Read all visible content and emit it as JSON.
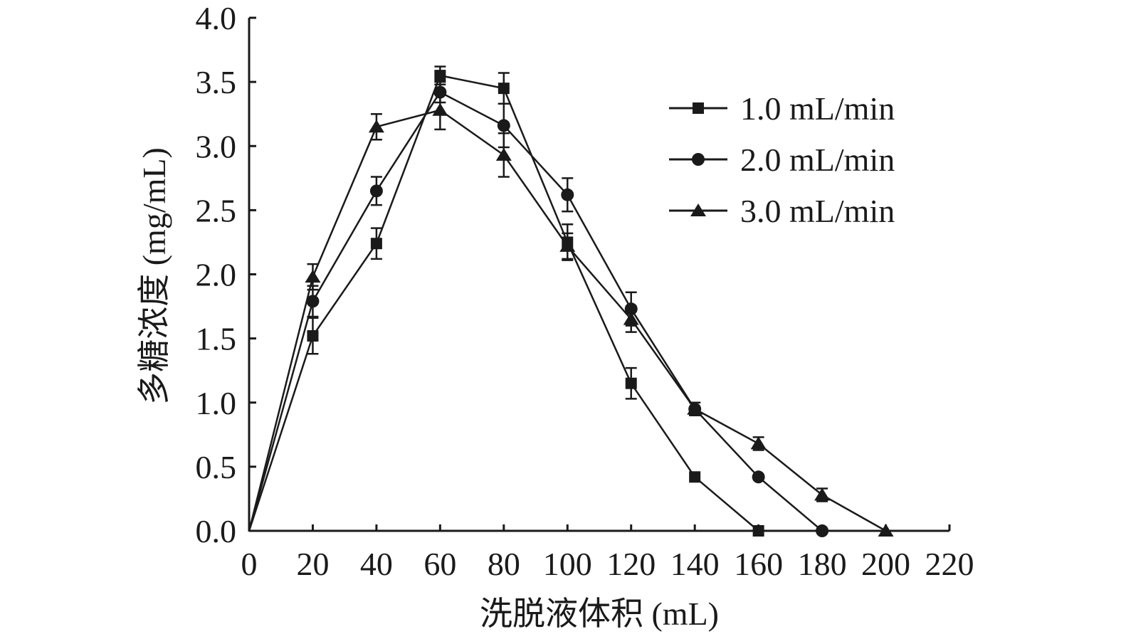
{
  "chart_data": {
    "type": "line",
    "title": "",
    "xlabel": "洗脱液体积 (mL)",
    "ylabel": "多糖浓度 (mg/mL)",
    "xlim": [
      0,
      220
    ],
    "ylim": [
      0,
      4.0
    ],
    "xticks": [
      "0",
      "20",
      "40",
      "60",
      "80",
      "100",
      "120",
      "140",
      "160",
      "180",
      "200",
      "220"
    ],
    "yticks": [
      "0.0",
      "0.5",
      "1.0",
      "1.5",
      "2.0",
      "2.5",
      "3.0",
      "3.5",
      "4.0"
    ],
    "grid": false,
    "legend_position": "top-right",
    "series": [
      {
        "name": "1.0 mL/min",
        "marker": "square",
        "x": [
          0,
          20,
          40,
          60,
          80,
          100,
          120,
          140,
          160
        ],
        "y": [
          0,
          1.52,
          2.24,
          3.55,
          3.45,
          2.25,
          1.15,
          0.42,
          0.0
        ],
        "err": [
          0,
          0.14,
          0.12,
          0.07,
          0.12,
          0.14,
          0.12,
          0.03,
          0.02
        ]
      },
      {
        "name": "2.0 mL/min",
        "marker": "circle",
        "x": [
          0,
          20,
          40,
          60,
          80,
          100,
          120,
          140,
          160,
          180
        ],
        "y": [
          0,
          1.79,
          2.65,
          3.42,
          3.16,
          2.62,
          1.73,
          0.95,
          0.42,
          0.0
        ],
        "err": [
          0,
          0.12,
          0.11,
          0.08,
          0.17,
          0.13,
          0.13,
          0.05,
          0.03,
          0.02
        ]
      },
      {
        "name": "3.0 mL/min",
        "marker": "triangle",
        "x": [
          0,
          20,
          40,
          60,
          80,
          100,
          120,
          140,
          160,
          180,
          200
        ],
        "y": [
          0,
          1.98,
          3.15,
          3.28,
          2.93,
          2.22,
          1.65,
          0.95,
          0.68,
          0.28,
          0.0
        ],
        "err": [
          0,
          0.1,
          0.1,
          0.15,
          0.17,
          0.1,
          0.1,
          0.05,
          0.05,
          0.05,
          0.02
        ]
      }
    ]
  }
}
